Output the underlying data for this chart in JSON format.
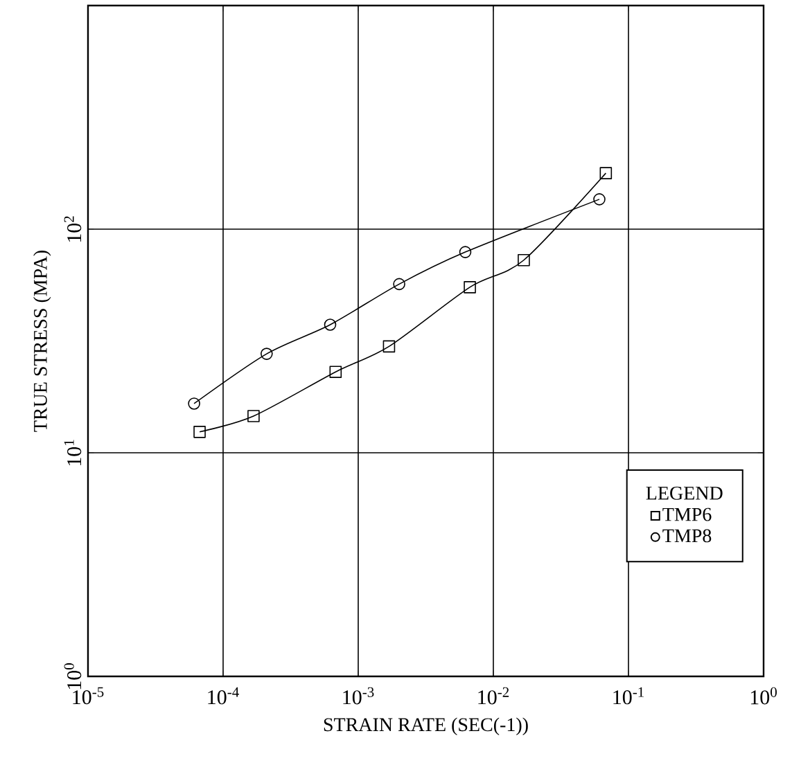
{
  "chart_data": {
    "type": "line",
    "xlabel": "STRAIN RATE (SEC(-1))",
    "ylabel": "TRUE STRESS (MPA)",
    "legend_title": "LEGEND",
    "log": "xy",
    "grid": true,
    "legend": "bottom right",
    "line_style": "solid",
    "xlim": [
      1e-05,
      1
    ],
    "ylim": [
      1,
      1000
    ],
    "xticks": [
      {
        "value": 1e-05,
        "label": "10$^{-5}$"
      },
      {
        "value": 0.0001,
        "label": "10$^{-4}$"
      },
      {
        "value": 0.001,
        "label": "10$^{-3}$"
      },
      {
        "value": 0.01,
        "label": "10$^{-2}$"
      },
      {
        "value": 0.1,
        "label": "10$^{-1}$"
      },
      {
        "value": 1,
        "label": "10$^{0}$"
      }
    ],
    "yticks": [
      {
        "value": 1,
        "label": "10$^{0}$"
      },
      {
        "value": 10,
        "label": "10$^{1}$"
      },
      {
        "value": 100,
        "label": "10$^{2}$"
      },
      {
        "value": 1000,
        "label": null
      }
    ],
    "series": [
      {
        "name": "TMP6",
        "color": "#000000",
        "marker": "square",
        "x": [
          6.7e-05,
          0.000168,
          0.00068,
          0.00169,
          0.0067,
          0.0168,
          0.068
        ],
        "values": [
          12.4,
          14.6,
          23,
          29.9,
          55,
          72.7,
          178
        ]
      },
      {
        "name": "TMP8",
        "color": "#000000",
        "marker": "circle",
        "x": [
          6.1e-05,
          0.00021,
          0.00062,
          0.00201,
          0.0062,
          0.0609
        ],
        "values": [
          16.6,
          27.7,
          37.4,
          56.8,
          79,
          136
        ]
      }
    ]
  }
}
